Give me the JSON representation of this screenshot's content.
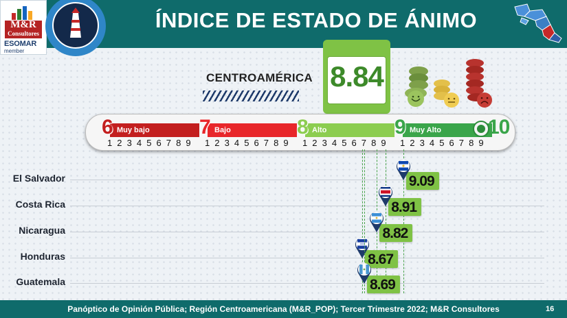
{
  "header": {
    "title": "ÍNDICE DE ESTADO DE ÁNIMO",
    "logo_line1": "M&R",
    "logo_line2": "Consultores",
    "esomar": "ESOMAR",
    "esomar_member": "member"
  },
  "headline": {
    "region": "CENTROAMÉRICA",
    "value": "8.84"
  },
  "scale": {
    "segments": [
      {
        "num": "6",
        "label": "Muy bajo",
        "color": "#c31f1f"
      },
      {
        "num": "7",
        "label": "Bajo",
        "color": "#e8262a"
      },
      {
        "num": "8",
        "label": "Alto",
        "color": "#8ccd50"
      },
      {
        "num": "9",
        "label": "Muy Alto",
        "color": "#3aa54a"
      }
    ],
    "end_num": "10",
    "ticks": [
      "1",
      "2",
      "3",
      "4",
      "5",
      "6",
      "7",
      "8",
      "9"
    ]
  },
  "chart_data": {
    "type": "bar",
    "title": "ÍNDICE DE ESTADO DE ÁNIMO",
    "scale_min": 6,
    "scale_max": 10,
    "overall": {
      "name": "CENTROAMÉRICA",
      "value": 8.84
    },
    "categories": [
      "El Salvador",
      "Costa Rica",
      "Nicaragua",
      "Honduras",
      "Guatemala"
    ],
    "values": [
      9.09,
      8.91,
      8.82,
      8.67,
      8.69
    ],
    "labels": [
      "9.09",
      "8.91",
      "8.82",
      "8.67",
      "8.69"
    ],
    "flags": [
      "el-salvador-flag",
      "costa-rica-flag",
      "nicaragua-flag",
      "honduras-flag",
      "guatemala-flag"
    ],
    "bar_color": "#7fc245"
  },
  "footer": {
    "source": "Panóptico de Opinión Pública; Región Centroamericana (M&R_POP); Tercer Trimestre 2022; M&R Consultores",
    "page": "16"
  }
}
